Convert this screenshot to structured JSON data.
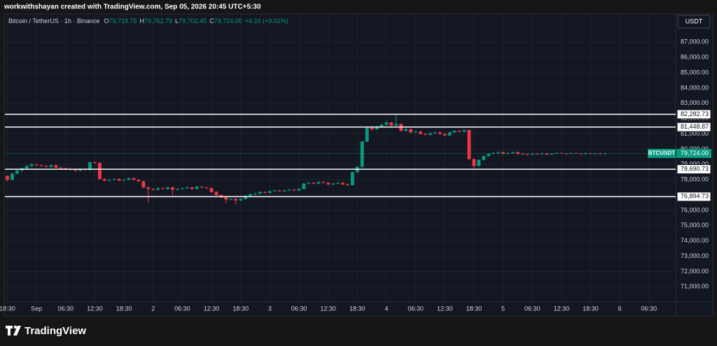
{
  "chart_data": {
    "type": "candlestick",
    "caption": "workwithshayan created with TradingView.com, Sep 05, 2026 20:45 UTC+5:30",
    "symbol": "Bitcoin / TetherUS · 1h · Binance",
    "ohlc": [
      {
        "key": "O",
        "value": "79,719.75"
      },
      {
        "key": "H",
        "value": "79,762.79"
      },
      {
        "key": "L",
        "value": "79,702.45"
      },
      {
        "key": "C",
        "value": "79,724.00"
      }
    ],
    "change": "+4.24 (+0.01%)",
    "currency": "USDT",
    "brand": "TradingView",
    "up_color": "#089981",
    "down_color": "#f23645",
    "grid": true,
    "xlim": [
      -0.5,
      137.5
    ],
    "ylim": [
      70100,
      87700
    ],
    "xticks": [
      {
        "value": 0,
        "label": "18:30"
      },
      {
        "value": 6,
        "label": "Sep"
      },
      {
        "value": 12,
        "label": "06:30"
      },
      {
        "value": 18,
        "label": "12:30"
      },
      {
        "value": 24,
        "label": "18:30"
      },
      {
        "value": 30,
        "label": "2"
      },
      {
        "value": 36,
        "label": "06:30"
      },
      {
        "value": 42,
        "label": "12:30"
      },
      {
        "value": 48,
        "label": "18:30"
      },
      {
        "value": 54,
        "label": "3"
      },
      {
        "value": 60,
        "label": "06:30"
      },
      {
        "value": 66,
        "label": "12:30"
      },
      {
        "value": 72,
        "label": "18:30"
      },
      {
        "value": 78,
        "label": "4"
      },
      {
        "value": 84,
        "label": "06:30"
      },
      {
        "value": 90,
        "label": "12:30"
      },
      {
        "value": 96,
        "label": "18:30"
      },
      {
        "value": 102,
        "label": "5"
      },
      {
        "value": 108,
        "label": "06:30"
      },
      {
        "value": 114,
        "label": "12:30"
      },
      {
        "value": 120,
        "label": "18:30"
      },
      {
        "value": 126,
        "label": "6"
      },
      {
        "value": 132,
        "label": "06:30"
      }
    ],
    "yticks": [
      {
        "value": 71000,
        "label": "71,000.00"
      },
      {
        "value": 72000,
        "label": "72,000.00"
      },
      {
        "value": 73000,
        "label": "73,000.00"
      },
      {
        "value": 74000,
        "label": "74,000.00"
      },
      {
        "value": 75000,
        "label": "75,000.00"
      },
      {
        "value": 76000,
        "label": "76,000.00"
      },
      {
        "value": 77000,
        "label": "77,000.00"
      },
      {
        "value": 78000,
        "label": "78,000.00"
      },
      {
        "value": 79000,
        "label": "79,000.00"
      },
      {
        "value": 80000,
        "label": "80,000.00"
      },
      {
        "value": 81000,
        "label": "81,000.00"
      },
      {
        "value": 82000,
        "label": "82,000.00"
      },
      {
        "value": 83000,
        "label": "83,000.00"
      },
      {
        "value": 84000,
        "label": "84,000.00"
      },
      {
        "value": 85000,
        "label": "85,000.00"
      },
      {
        "value": 86000,
        "label": "86,000.00"
      },
      {
        "value": 87000,
        "label": "87,000.00"
      }
    ],
    "levels": [
      {
        "value": 82282.73,
        "label": "82,282.73"
      },
      {
        "value": 81448.87,
        "label": "81,448.87"
      },
      {
        "value": 78690.73,
        "label": "78,690.73"
      },
      {
        "value": 76894.73,
        "label": "76,894.73"
      }
    ],
    "last_price": {
      "symbol": "BTCUSDT",
      "value": 79724,
      "label": "79,724.00"
    },
    "x": [
      0,
      1,
      2,
      3,
      4,
      5,
      6,
      7,
      8,
      9,
      10,
      11,
      12,
      13,
      14,
      15,
      16,
      17,
      18,
      19,
      20,
      21,
      22,
      23,
      24,
      25,
      26,
      27,
      28,
      29,
      30,
      31,
      32,
      33,
      34,
      35,
      36,
      37,
      38,
      39,
      40,
      41,
      42,
      43,
      44,
      45,
      46,
      47,
      48,
      49,
      50,
      51,
      52,
      53,
      54,
      55,
      56,
      57,
      58,
      59,
      60,
      61,
      62,
      63,
      64,
      65,
      66,
      67,
      68,
      69,
      70,
      71,
      72,
      73,
      74,
      75,
      76,
      77,
      78,
      79,
      80,
      81,
      82,
      83,
      84,
      85,
      86,
      87,
      88,
      89,
      90,
      91,
      92,
      93,
      94,
      95,
      96,
      97,
      98,
      99,
      100,
      101,
      102,
      103,
      104,
      105,
      106,
      107,
      108,
      109,
      110,
      111,
      112,
      113,
      114,
      115,
      116,
      117,
      118,
      119,
      120,
      121,
      122,
      123
    ],
    "candles": [
      [
        78250,
        78300,
        77900,
        78000
      ],
      [
        78000,
        78450,
        77950,
        78400
      ],
      [
        78400,
        78650,
        78350,
        78600
      ],
      [
        78600,
        78800,
        78550,
        78750
      ],
      [
        78750,
        78950,
        78700,
        78900
      ],
      [
        78900,
        79100,
        78850,
        79000
      ],
      [
        79000,
        79050,
        78900,
        78950
      ],
      [
        78950,
        79000,
        78850,
        78900
      ],
      [
        78900,
        78950,
        78800,
        78850
      ],
      [
        78850,
        79000,
        78800,
        78950
      ],
      [
        78950,
        79000,
        78750,
        78800
      ],
      [
        78800,
        78850,
        78700,
        78750
      ],
      [
        78750,
        78800,
        78650,
        78700
      ],
      [
        78700,
        78750,
        78600,
        78650
      ],
      [
        78650,
        78700,
        78550,
        78600
      ],
      [
        78600,
        78750,
        78550,
        78700
      ],
      [
        78700,
        78750,
        78600,
        78650
      ],
      [
        78650,
        79200,
        78600,
        79150
      ],
      [
        79150,
        79200,
        79050,
        79100
      ],
      [
        79100,
        79150,
        78000,
        78050
      ],
      [
        78050,
        78100,
        77900,
        77950
      ],
      [
        77950,
        78050,
        77900,
        78000
      ],
      [
        78000,
        78100,
        77950,
        78050
      ],
      [
        78050,
        78100,
        77900,
        77950
      ],
      [
        77950,
        78050,
        77900,
        78000
      ],
      [
        78000,
        78150,
        77950,
        78100
      ],
      [
        78100,
        78150,
        77950,
        78000
      ],
      [
        78000,
        78050,
        77850,
        77900
      ],
      [
        77900,
        77950,
        77450,
        77500
      ],
      [
        77500,
        77550,
        76500,
        77400
      ],
      [
        77400,
        77450,
        77300,
        77350
      ],
      [
        77350,
        77500,
        77300,
        77450
      ],
      [
        77450,
        77500,
        77350,
        77400
      ],
      [
        77400,
        77550,
        77350,
        77500
      ],
      [
        77500,
        77550,
        77000,
        77350
      ],
      [
        77350,
        77450,
        77300,
        77400
      ],
      [
        77400,
        77500,
        77350,
        77450
      ],
      [
        77450,
        77550,
        77400,
        77500
      ],
      [
        77500,
        77550,
        77350,
        77400
      ],
      [
        77400,
        77600,
        77350,
        77550
      ],
      [
        77550,
        77600,
        77450,
        77500
      ],
      [
        77500,
        77550,
        77400,
        77450
      ],
      [
        77450,
        77500,
        77150,
        77200
      ],
      [
        77200,
        77250,
        76950,
        77000
      ],
      [
        77000,
        77050,
        76800,
        76850
      ],
      [
        76850,
        76900,
        76450,
        76700
      ],
      [
        76700,
        76800,
        76650,
        76750
      ],
      [
        76750,
        76800,
        76400,
        76650
      ],
      [
        76650,
        76800,
        76600,
        76750
      ],
      [
        76750,
        77000,
        76700,
        76950
      ],
      [
        76950,
        77100,
        76900,
        77050
      ],
      [
        77050,
        77150,
        77000,
        77100
      ],
      [
        77100,
        77250,
        77050,
        77200
      ],
      [
        77200,
        77250,
        77100,
        77150
      ],
      [
        77150,
        77300,
        77100,
        77250
      ],
      [
        77250,
        77350,
        77200,
        77300
      ],
      [
        77300,
        77350,
        77200,
        77250
      ],
      [
        77250,
        77350,
        77200,
        77300
      ],
      [
        77300,
        77400,
        77250,
        77350
      ],
      [
        77350,
        77400,
        77250,
        77300
      ],
      [
        77300,
        77450,
        77250,
        77400
      ],
      [
        77400,
        77800,
        77350,
        77750
      ],
      [
        77750,
        77850,
        77700,
        77800
      ],
      [
        77800,
        77850,
        77700,
        77750
      ],
      [
        77750,
        77900,
        77700,
        77850
      ],
      [
        77850,
        77900,
        77750,
        77800
      ],
      [
        77800,
        77850,
        77650,
        77700
      ],
      [
        77700,
        77800,
        77650,
        77750
      ],
      [
        77750,
        77850,
        77700,
        77800
      ],
      [
        77800,
        77850,
        77650,
        77700
      ],
      [
        77700,
        77750,
        77600,
        77650
      ],
      [
        77650,
        78550,
        77600,
        78500
      ],
      [
        78500,
        78900,
        78450,
        78850
      ],
      [
        78850,
        80550,
        78800,
        80500
      ],
      [
        80500,
        81500,
        80450,
        81400
      ],
      [
        81400,
        81500,
        81200,
        81300
      ],
      [
        81300,
        81550,
        81250,
        81450
      ],
      [
        81450,
        81700,
        81400,
        81600
      ],
      [
        81600,
        81850,
        81550,
        81750
      ],
      [
        81750,
        81800,
        81450,
        81550
      ],
      [
        81550,
        82250,
        81500,
        81650
      ],
      [
        81650,
        81700,
        81150,
        81200
      ],
      [
        81200,
        81400,
        81150,
        81300
      ],
      [
        81300,
        81350,
        81050,
        81100
      ],
      [
        81100,
        81200,
        81050,
        81150
      ],
      [
        81150,
        81200,
        80950,
        81000
      ],
      [
        81000,
        81050,
        80900,
        80950
      ],
      [
        80950,
        81100,
        80900,
        81050
      ],
      [
        81050,
        81150,
        81000,
        81100
      ],
      [
        81100,
        81150,
        80950,
        81000
      ],
      [
        81000,
        81050,
        80850,
        80900
      ],
      [
        80900,
        81150,
        80850,
        81100
      ],
      [
        81100,
        81250,
        81050,
        81200
      ],
      [
        81200,
        81250,
        81100,
        81150
      ],
      [
        81150,
        81300,
        81100,
        81250
      ],
      [
        81250,
        81300,
        79300,
        79350
      ],
      [
        79350,
        79400,
        78750,
        78900
      ],
      [
        78900,
        79350,
        78850,
        79300
      ],
      [
        79300,
        79600,
        79250,
        79550
      ],
      [
        79550,
        79750,
        79500,
        79700
      ],
      [
        79700,
        79800,
        79650,
        79750
      ],
      [
        79750,
        79850,
        79700,
        79800
      ],
      [
        79800,
        79850,
        79650,
        79700
      ],
      [
        79700,
        79800,
        79650,
        79750
      ],
      [
        79750,
        79850,
        79700,
        79800
      ],
      [
        79800,
        79850,
        79650,
        79700
      ],
      [
        79700,
        79750,
        79650,
        79680
      ],
      [
        79680,
        79700,
        79600,
        79650
      ],
      [
        79650,
        79750,
        79620,
        79700
      ],
      [
        79700,
        79720,
        79650,
        79680
      ],
      [
        79680,
        79750,
        79650,
        79720
      ],
      [
        79720,
        79740,
        79620,
        79650
      ],
      [
        79650,
        79730,
        79630,
        79700
      ],
      [
        79700,
        79780,
        79680,
        79750
      ],
      [
        79750,
        79770,
        79700,
        79720
      ],
      [
        79720,
        79740,
        79680,
        79700
      ],
      [
        79700,
        79780,
        79680,
        79750
      ],
      [
        79750,
        79770,
        79700,
        79720
      ],
      [
        79720,
        79740,
        79660,
        79680
      ],
      [
        79680,
        79760,
        79660,
        79740
      ],
      [
        79740,
        79760,
        79680,
        79700
      ],
      [
        79700,
        79740,
        79680,
        79720
      ],
      [
        79720,
        79770,
        79700,
        79719.75
      ],
      [
        79719.75,
        79762.79,
        79702.45,
        79724
      ]
    ]
  }
}
